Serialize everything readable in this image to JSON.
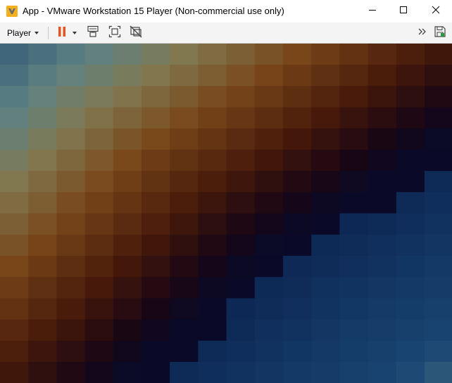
{
  "window": {
    "title": "App - VMware Workstation 15 Player (Non-commercial use only)",
    "app_icon": "vmware-icon",
    "controls": [
      "minimize-icon",
      "maximize-icon",
      "close-icon"
    ]
  },
  "toolbar": {
    "player_menu_label": "Player",
    "buttons": [
      "pause-icon",
      "send-ctrl-alt-del-icon",
      "fit-guest-icon",
      "unity-icon"
    ],
    "right_buttons": [
      "more-icon",
      "save-icon"
    ],
    "accent_color": "#e8541e"
  },
  "guest_display": {
    "content": "heatmap-pattern",
    "palette": [
      "#1d4a78",
      "#f0f0f0",
      "#8a5a1e",
      "#150816"
    ]
  }
}
